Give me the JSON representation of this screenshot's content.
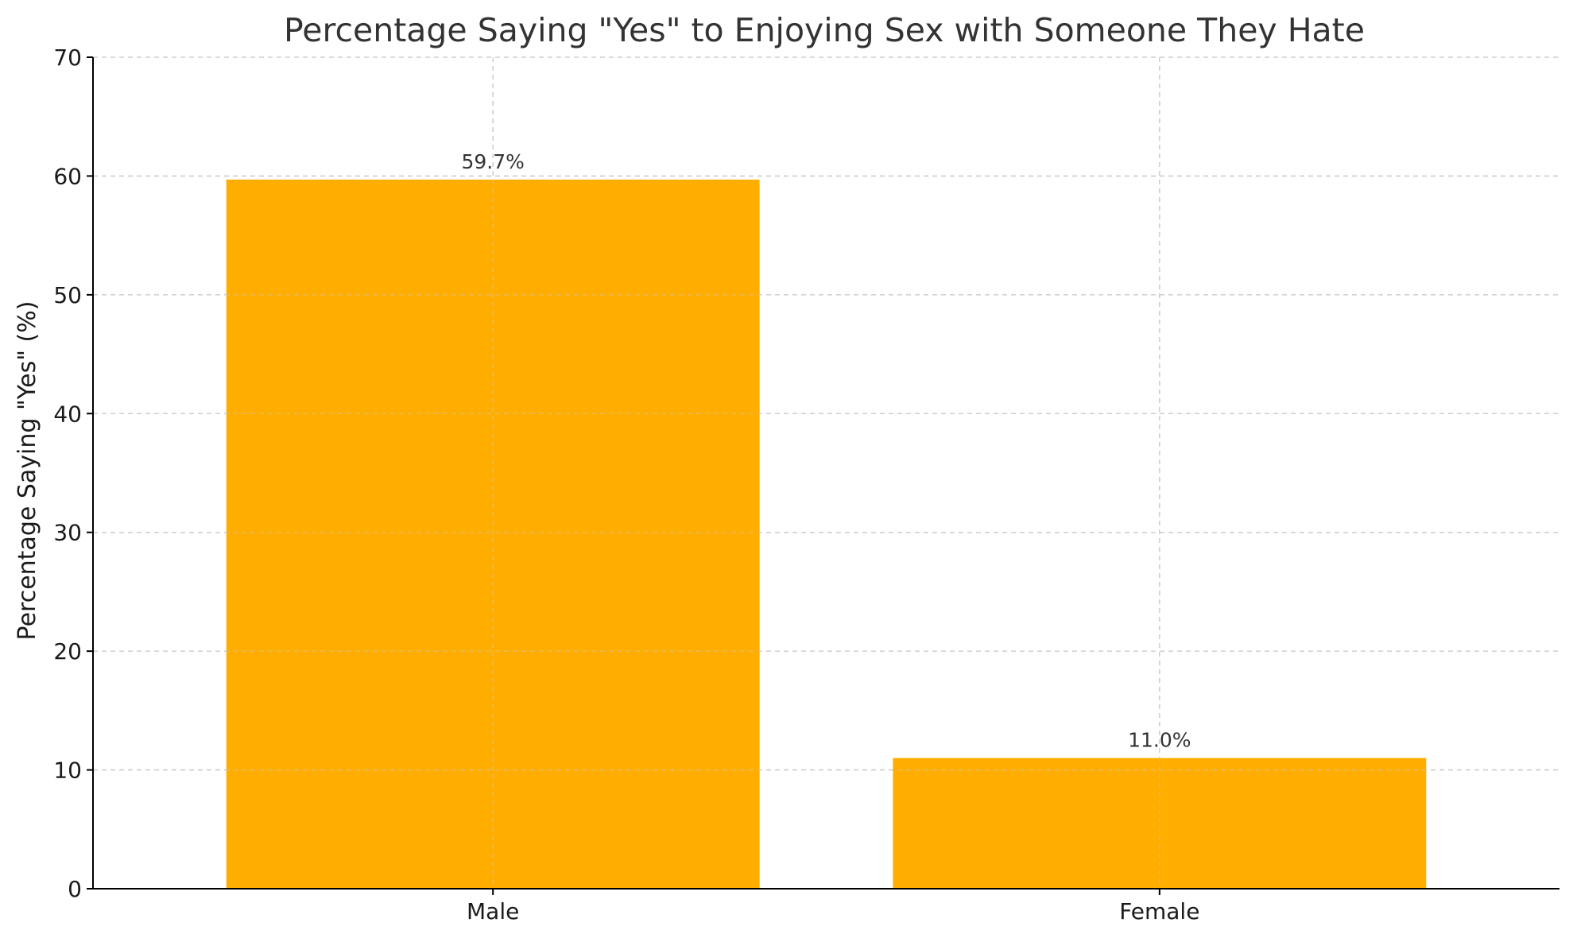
{
  "chart_data": {
    "type": "bar",
    "title": "Percentage Saying \"Yes\" to Enjoying Sex with Someone They Hate",
    "xlabel": "",
    "ylabel": "Percentage Saying \"Yes\" (%)",
    "categories": [
      "Male",
      "Female"
    ],
    "values": [
      59.7,
      11.0
    ],
    "data_labels": [
      "59.7%",
      "11.0%"
    ],
    "ylim": [
      0,
      70
    ],
    "yticks": [
      0,
      10,
      20,
      30,
      40,
      50,
      60,
      70
    ],
    "grid": true,
    "bar_color": "#FFAE00"
  }
}
